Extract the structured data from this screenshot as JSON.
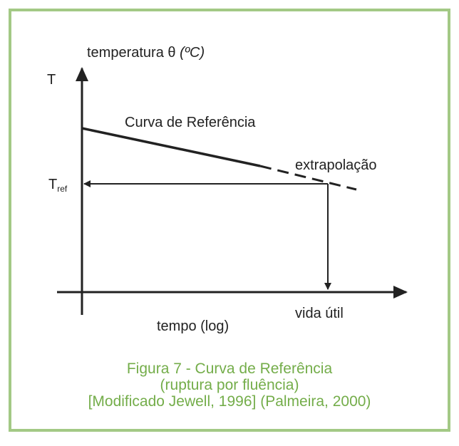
{
  "axes": {
    "y_label": "temperatura θ",
    "y_unit": "(ºC)",
    "y_symbol": "T",
    "ref_symbol": "T",
    "ref_subscript": "ref",
    "x_label": "tempo (log)",
    "x_end_label": "vida útil"
  },
  "curve": {
    "label": "Curva de Referência",
    "extrapolation_label": "extrapolação"
  },
  "caption": {
    "lines": [
      "Figura 7 - Curva de Referência",
      "(ruptura por fluência)",
      "[Modificado Jewell, 1996] (Palmeira, 2000)"
    ]
  }
}
